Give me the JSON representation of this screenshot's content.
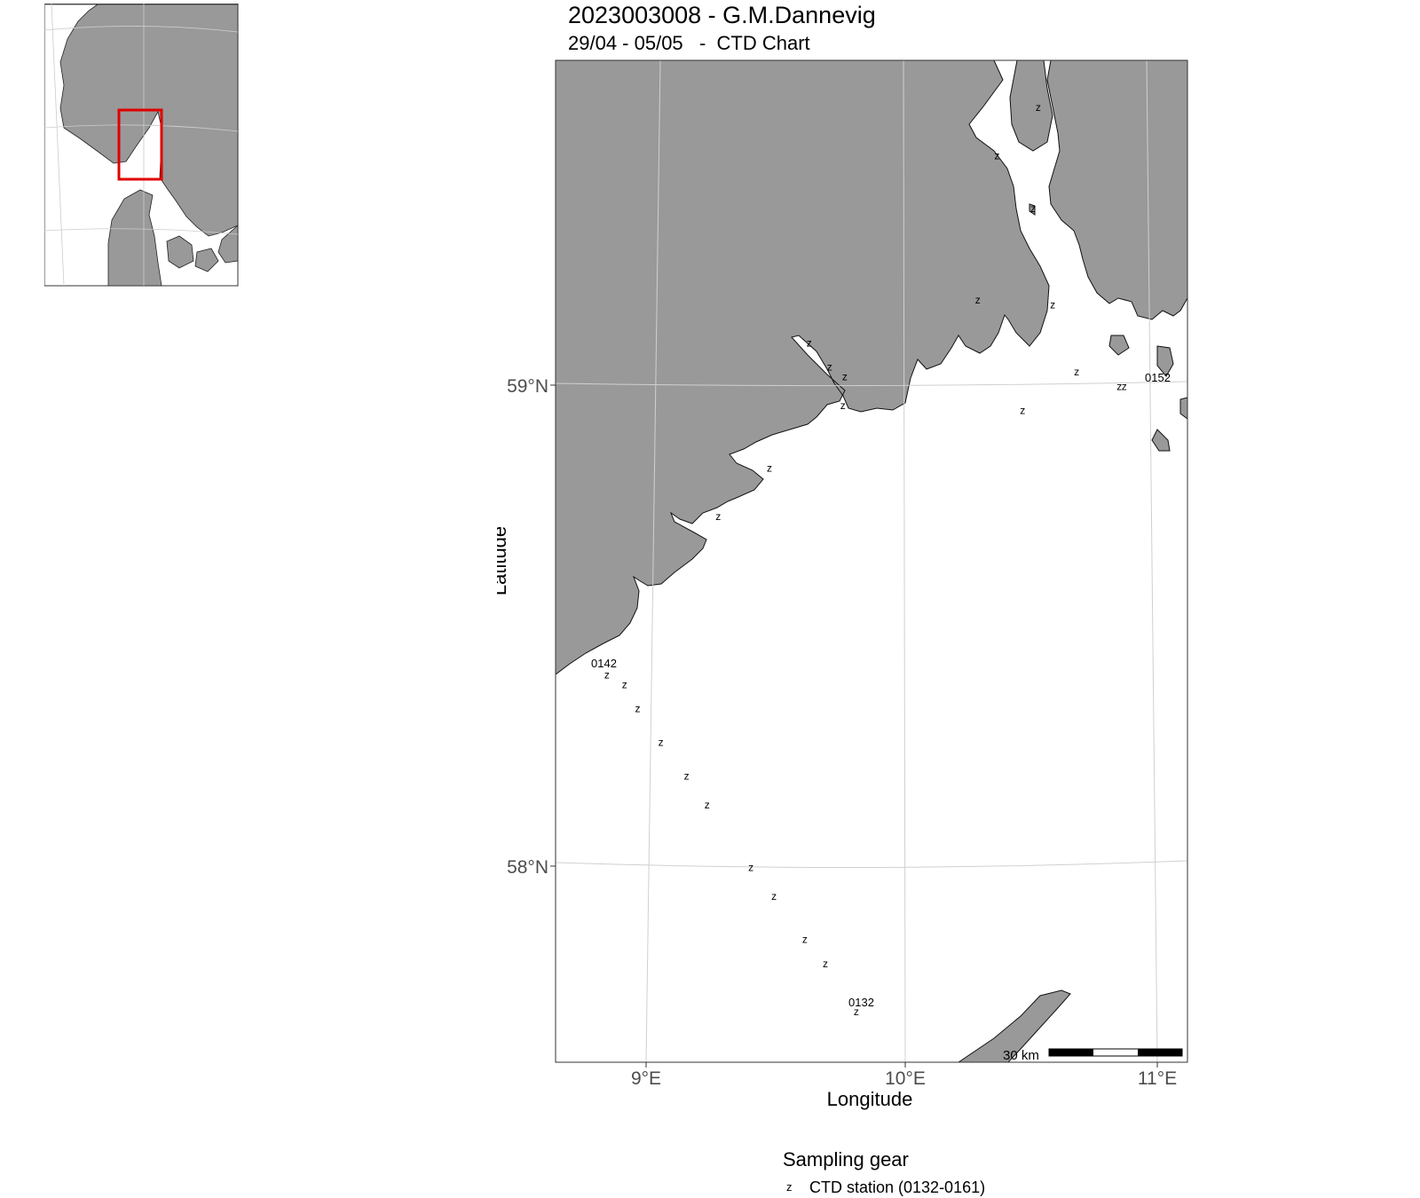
{
  "title": "2023003008 - G.M.Dannevig",
  "subtitle": "29/04 - 05/05   -  CTD Chart",
  "axes": {
    "x_title": "Longitude",
    "y_title": "Latitude",
    "x_ticks": [
      "9°E",
      "10°E",
      "11°E"
    ],
    "y_ticks": [
      "59°N",
      "58°N"
    ]
  },
  "scale_bar": {
    "label": "30 km"
  },
  "legend": {
    "title": "Sampling gear",
    "items": [
      {
        "symbol": "z",
        "label": "CTD station (0132-0161)"
      }
    ]
  },
  "station_symbol": "z",
  "station_labels": [
    "0142",
    "0152",
    "0132"
  ],
  "stations": [
    {
      "lon": 10.59,
      "lat": 59.57
    },
    {
      "lon": 10.42,
      "lat": 59.47
    },
    {
      "lon": 10.56,
      "lat": 59.36
    },
    {
      "lon": 10.33,
      "lat": 59.17
    },
    {
      "lon": 10.63,
      "lat": 59.16
    },
    {
      "lon": 9.65,
      "lat": 59.08
    },
    {
      "lon": 9.73,
      "lat": 59.03
    },
    {
      "lon": 9.79,
      "lat": 59.01
    },
    {
      "lon": 9.78,
      "lat": 58.95
    },
    {
      "lon": 10.72,
      "lat": 59.02
    },
    {
      "lon": 10.5,
      "lat": 58.94
    },
    {
      "lon": 10.89,
      "lat": 58.99
    },
    {
      "lon": 10.91,
      "lat": 58.99
    },
    {
      "lon": 9.48,
      "lat": 58.82
    },
    {
      "lon": 9.27,
      "lat": 58.72
    },
    {
      "lon": 8.81,
      "lat": 58.39
    },
    {
      "lon": 8.88,
      "lat": 58.37
    },
    {
      "lon": 8.93,
      "lat": 58.32
    },
    {
      "lon": 9.02,
      "lat": 58.25
    },
    {
      "lon": 9.12,
      "lat": 58.18
    },
    {
      "lon": 9.2,
      "lat": 58.12
    },
    {
      "lon": 9.37,
      "lat": 57.99
    },
    {
      "lon": 9.46,
      "lat": 57.93
    },
    {
      "lon": 9.58,
      "lat": 57.84
    },
    {
      "lon": 9.66,
      "lat": 57.79
    },
    {
      "lon": 9.78,
      "lat": 57.69
    }
  ],
  "colors": {
    "land": "#999999",
    "sea": "#ffffff",
    "grid": "#d0d0d0",
    "frame": "#333333",
    "highlight": "#e00000"
  }
}
